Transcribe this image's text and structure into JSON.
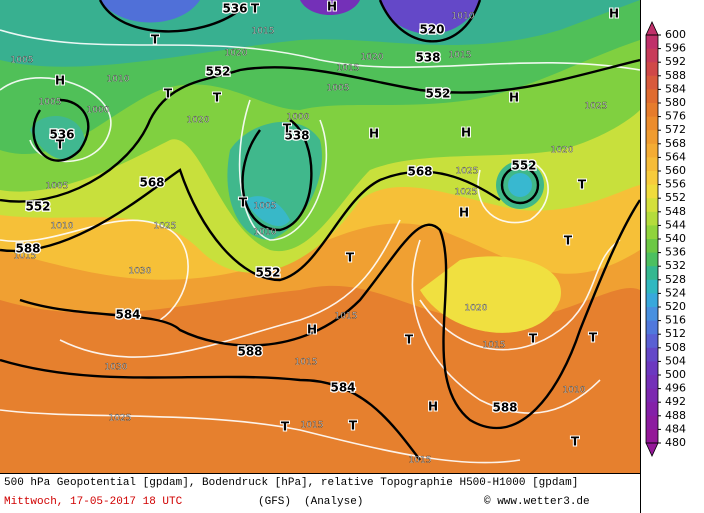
{
  "map": {
    "colorbar": {
      "labels": [
        600,
        596,
        592,
        588,
        584,
        580,
        576,
        572,
        568,
        564,
        560,
        556,
        552,
        548,
        544,
        540,
        536,
        532,
        528,
        524,
        520,
        516,
        512,
        508,
        504,
        500,
        496,
        492,
        488,
        484,
        480
      ],
      "colors": [
        "#c0306a",
        "#c83c5a",
        "#d04848",
        "#d85a3c",
        "#e06c30",
        "#e67c2c",
        "#ec8c2c",
        "#f09c30",
        "#f4ac34",
        "#f6bc38",
        "#f8cc3c",
        "#f0dc3c",
        "#d4e03c",
        "#b4dc3c",
        "#90d43c",
        "#6cc844",
        "#4cc060",
        "#34b890",
        "#30b8c0",
        "#38a8dc",
        "#4890e0",
        "#5078dc",
        "#5a60d4",
        "#6448c8",
        "#6c38c0",
        "#7430b8",
        "#7c28b0",
        "#8420a8",
        "#8c1ca0",
        "#941898"
      ]
    },
    "geopotential_labels": [
      536,
      520,
      538,
      552,
      552,
      536,
      538,
      552,
      568,
      568,
      552,
      588,
      552,
      584,
      588,
      584,
      588
    ],
    "pressure_labels": [
      1015,
      1020,
      1010,
      1020,
      1005,
      1015,
      1020,
      1010,
      1015,
      1005,
      1005,
      1000,
      1000,
      1005,
      1010,
      1015,
      1025,
      1005,
      1010,
      1030,
      1030,
      1025,
      1015,
      1015,
      1015,
      1015,
      1025,
      1025,
      1020,
      1015,
      1010,
      1020,
      1025
    ],
    "markers": [
      "T",
      "H",
      "T",
      "H",
      "H",
      "T",
      "T",
      "H",
      "T",
      "T",
      "H",
      "H",
      "T",
      "T",
      "H",
      "T",
      "T",
      "H",
      "T",
      "T",
      "T",
      "H",
      "T",
      "T",
      "T"
    ],
    "footer": {
      "description": "500 hPa Geopotential [gpdam], Bodendruck [hPa], relative Topographie H500-H1000 [gpdam]",
      "date": "Mittwoch, 17-05-2017  18 UTC",
      "model": "(GFS)",
      "run": "(Analyse)",
      "source": "© www.wetter3.de"
    }
  }
}
